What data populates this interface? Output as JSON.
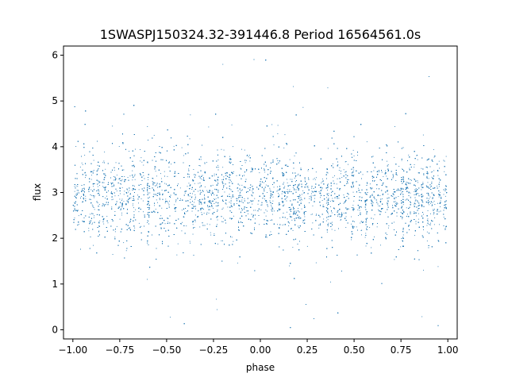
{
  "chart_data": {
    "type": "scatter",
    "title": "1SWASPJ150324.32-391446.8 Period 16564561.0s",
    "xlabel": "phase",
    "ylabel": "flux",
    "xlim": [
      -1.05,
      1.05
    ],
    "ylim": [
      -0.2,
      6.2
    ],
    "x_ticks": [
      -1.0,
      -0.75,
      -0.5,
      -0.25,
      0.0,
      0.25,
      0.5,
      0.75,
      1.0
    ],
    "x_tick_labels": [
      "−1.00",
      "−0.75",
      "−0.50",
      "−0.25",
      "0.00",
      "0.25",
      "0.50",
      "0.75",
      "1.00"
    ],
    "y_ticks": [
      0,
      1,
      2,
      3,
      4,
      5,
      6
    ],
    "y_tick_labels": [
      "0",
      "1",
      "2",
      "3",
      "4",
      "5",
      "6"
    ],
    "grid": false,
    "legend": false,
    "marker_color": "#1f77b4",
    "series": [
      {
        "phase_range": [
          -1.0,
          1.0
        ],
        "median_flux": 2.9,
        "bulk_flux_range": [
          2.0,
          4.0
        ],
        "outlier_flux_range": [
          0.0,
          6.0
        ],
        "denser_phase_regions": [
          [
            -0.95,
            -0.75
          ],
          [
            -0.35,
            -0.1
          ],
          [
            0.7,
            0.85
          ]
        ]
      }
    ]
  }
}
